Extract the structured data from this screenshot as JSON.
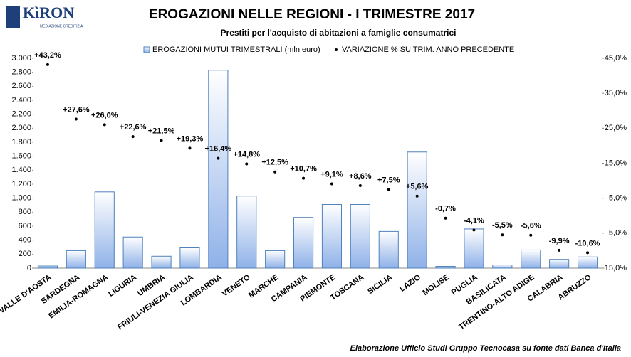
{
  "logo": {
    "name": "KìRON",
    "tagline": "MEDIAZIONE CREDITIZIA"
  },
  "chart_data": {
    "type": "bar",
    "title": "EROGAZIONI NELLE REGIONI - I TRIMESTRE 2017",
    "subtitle": "Prestiti per l'acquisto di abitazioni a famiglie consumatrici",
    "note": "Elaborazione Ufficio Studi Gruppo Tecnocasa su fonte dati Banca d'Italia",
    "categories": [
      "VALLE D'AOSTA",
      "SARDEGNA",
      "EMILIA-ROMAGNA",
      "LIGURIA",
      "UMBRIA",
      "FRIULI-VENEZIA GIULIA",
      "LOMBARDIA",
      "VENETO",
      "MARCHE",
      "CAMPANIA",
      "PIEMONTE",
      "TOSCANA",
      "SICILIA",
      "LAZIO",
      "MOLISE",
      "PUGLIA",
      "BASILICATA",
      "TRENTINO-ALTO ADIGE",
      "CALABRIA",
      "ABRUZZO"
    ],
    "series": [
      {
        "name": "EROGAZIONI MUTUI TRIMESTRALI (mln euro)",
        "type": "bar",
        "color": "#4f81bd",
        "values": [
          30,
          250,
          1090,
          445,
          170,
          290,
          2830,
          1030,
          250,
          725,
          910,
          910,
          525,
          1660,
          25,
          560,
          45,
          260,
          125,
          160
        ]
      },
      {
        "name": "VARIAZIONE % SU TRIM. ANNO PRECEDENTE",
        "type": "scatter",
        "axis": "y2",
        "color": "#000000",
        "values": [
          43.2,
          27.6,
          26.0,
          22.6,
          21.5,
          19.3,
          16.4,
          14.8,
          12.5,
          10.7,
          9.1,
          8.6,
          7.5,
          5.6,
          -0.7,
          -4.1,
          -5.5,
          -5.6,
          -9.9,
          -10.6
        ],
        "value_labels": [
          "+43,2%",
          "+27,6%",
          "+26,0%",
          "+22,6%",
          "+21,5%",
          "+19,3%",
          "+16,4%",
          "+14,8%",
          "+12,5%",
          "+10,7%",
          "+9,1%",
          "+8,6%",
          "+7,5%",
          "+5,6%",
          "-0,7%",
          "-4,1%",
          "-5,5%",
          "-5,6%",
          "-9,9%",
          "-10,6%"
        ]
      }
    ],
    "ylim": [
      0,
      3000
    ],
    "yticks": [
      0,
      200,
      400,
      600,
      800,
      {
        "value": 1000,
        "label": "1.000"
      },
      {
        "value": 1200,
        "label": "1.200"
      },
      {
        "value": 1400,
        "label": "1.400"
      },
      {
        "value": 1600,
        "label": "1.600"
      },
      {
        "value": 1800,
        "label": "1.800"
      },
      {
        "value": 2000,
        "label": "2.000"
      },
      {
        "value": 2200,
        "label": "2.200"
      },
      {
        "value": 2400,
        "label": "2.400"
      },
      {
        "value": 2600,
        "label": "2.600"
      },
      {
        "value": 2800,
        "label": "2.800"
      },
      {
        "value": 3000,
        "label": "3.000"
      }
    ],
    "y2lim": [
      -15,
      45
    ],
    "y2ticks": [
      {
        "value": -15,
        "label": "-15,0%"
      },
      {
        "value": -5,
        "label": "-5,0%"
      },
      {
        "value": 5,
        "label": "5,0%"
      },
      {
        "value": 15,
        "label": "15,0%"
      },
      {
        "value": 25,
        "label": "25,0%"
      },
      {
        "value": 35,
        "label": "35,0%"
      },
      {
        "value": 45,
        "label": "45,0%"
      }
    ],
    "grid": false,
    "legend": "top"
  }
}
